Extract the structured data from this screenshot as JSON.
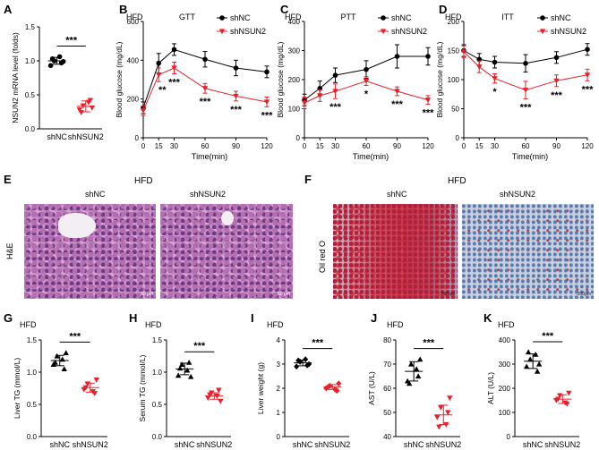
{
  "panel_letters": [
    "A",
    "B",
    "C",
    "D",
    "E",
    "F",
    "G",
    "H",
    "I",
    "J",
    "K"
  ],
  "common": {
    "hfd": "HFD",
    "shNC": "shNC",
    "shNSUN2": "shNSUN2",
    "sig3": "***",
    "sig2": "**",
    "sig1": "*"
  },
  "colors": {
    "shNC": "#000000",
    "shNSUN2": "#e8202a"
  },
  "chart_data": [
    {
      "panel": "A",
      "type": "scatter",
      "ylabel": "NSUN2 mRNA level (folds)",
      "categories": [
        "shNC",
        "shNSUN2"
      ],
      "ylim": [
        0,
        1.5
      ],
      "yticks": [
        "0.0",
        "0.5",
        "1.0",
        "1.5"
      ],
      "series": [
        {
          "name": "shNC",
          "values": [
            0.93,
            1.0,
            1.06,
            0.99,
            1.03,
            0.97
          ],
          "mean": 1.0,
          "sd": 0.05
        },
        {
          "name": "shNSUN2",
          "values": [
            0.28,
            0.34,
            0.39,
            0.31,
            0.24,
            0.42
          ],
          "mean": 0.33,
          "sd": 0.08
        }
      ],
      "annotation": "***"
    },
    {
      "panel": "B",
      "type": "line",
      "title": "GTT",
      "xlabel": "Time(min)",
      "ylabel": "Blood glucose (mg/dL)",
      "x": [
        0,
        15,
        30,
        60,
        90,
        120
      ],
      "xlim": [
        0,
        120
      ],
      "ylim": [
        0,
        600
      ],
      "yticks": [
        "0",
        "200",
        "400",
        "600"
      ],
      "xticks": [
        "0",
        "15",
        "30",
        "60",
        "90",
        "120"
      ],
      "series": [
        {
          "name": "shNC",
          "values": [
            155,
            385,
            455,
            405,
            360,
            340
          ],
          "err": [
            30,
            50,
            30,
            40,
            40,
            30
          ]
        },
        {
          "name": "shNSUN2",
          "values": [
            140,
            325,
            360,
            255,
            215,
            185
          ],
          "err": [
            25,
            35,
            30,
            25,
            25,
            25
          ]
        }
      ],
      "significance": [
        "",
        "**",
        "***",
        "***",
        "***",
        "***"
      ]
    },
    {
      "panel": "C",
      "type": "line",
      "title": "PTT",
      "xlabel": "Time(min)",
      "ylabel": "Blood glucose (mg/dL)",
      "x": [
        0,
        15,
        30,
        60,
        90,
        120
      ],
      "xlim": [
        0,
        120
      ],
      "ylim": [
        0,
        400
      ],
      "yticks": [
        "0",
        "100",
        "200",
        "300",
        "400"
      ],
      "xticks": [
        "0",
        "15",
        "30",
        "60",
        "90",
        "120"
      ],
      "series": [
        {
          "name": "shNC",
          "values": [
            130,
            170,
            215,
            235,
            280,
            280
          ],
          "err": [
            20,
            25,
            25,
            30,
            40,
            30
          ]
        },
        {
          "name": "shNSUN2",
          "values": [
            120,
            145,
            160,
            195,
            160,
            130
          ],
          "err": [
            20,
            20,
            25,
            15,
            15,
            15
          ]
        }
      ],
      "significance": [
        "",
        "",
        "***",
        "*",
        "***",
        "***"
      ]
    },
    {
      "panel": "D",
      "type": "line",
      "title": "ITT",
      "xlabel": "Time(min)",
      "ylabel": "Blood glucose (mg/dL)",
      "x": [
        0,
        15,
        30,
        60,
        90,
        120
      ],
      "xlim": [
        0,
        120
      ],
      "ylim": [
        0,
        200
      ],
      "yticks": [
        "0",
        "50",
        "100",
        "150",
        "200"
      ],
      "xticks": [
        "0",
        "15",
        "30",
        "60",
        "90",
        "120"
      ],
      "series": [
        {
          "name": "shNC",
          "values": [
            150,
            135,
            130,
            128,
            138,
            152
          ],
          "err": [
            10,
            10,
            10,
            15,
            10,
            10
          ]
        },
        {
          "name": "shNSUN2",
          "values": [
            148,
            122,
            102,
            82,
            98,
            108
          ],
          "err": [
            10,
            10,
            8,
            15,
            10,
            10
          ]
        }
      ],
      "significance": [
        "",
        "",
        "*",
        "***",
        "***",
        "***"
      ]
    },
    {
      "panel": "G",
      "type": "scatter",
      "ylabel": "Liver TG (mmol/L)",
      "categories": [
        "shNC",
        "shNSUN2"
      ],
      "ylim": [
        0,
        1.5
      ],
      "yticks": [
        "0.0",
        "0.5",
        "1.0",
        "1.5"
      ],
      "series": [
        {
          "name": "shNC",
          "values": [
            1.12,
            1.25,
            1.2,
            1.3,
            1.15,
            1.05
          ],
          "mean": 1.18,
          "sd": 0.08
        },
        {
          "name": "shNSUN2",
          "values": [
            0.73,
            0.82,
            0.7,
            0.88,
            0.76,
            0.67
          ],
          "mean": 0.76,
          "sd": 0.07
        }
      ],
      "annotation": "***"
    },
    {
      "panel": "H",
      "type": "scatter",
      "ylabel": "Serum TG (mmol/L)",
      "categories": [
        "shNC",
        "shNSUN2"
      ],
      "ylim": [
        0,
        1.5
      ],
      "yticks": [
        "0.0",
        "0.5",
        "1.0",
        "1.5"
      ],
      "series": [
        {
          "name": "shNC",
          "values": [
            0.95,
            1.12,
            1.03,
            0.93,
            1.06,
            1.15
          ],
          "mean": 1.05,
          "sd": 0.09
        },
        {
          "name": "shNSUN2",
          "values": [
            0.6,
            0.68,
            0.63,
            0.55,
            0.65,
            0.72
          ],
          "mean": 0.63,
          "sd": 0.05
        }
      ],
      "annotation": "***"
    },
    {
      "panel": "I",
      "type": "scatter",
      "ylabel": "Liver weight (g)",
      "categories": [
        "shNC",
        "shNSUN2"
      ],
      "ylim": [
        0,
        4
      ],
      "yticks": [
        "0",
        "1",
        "2",
        "3",
        "4"
      ],
      "series": [
        {
          "name": "shNC",
          "values": [
            2.9,
            3.1,
            3.2,
            3.0,
            3.15,
            2.95
          ],
          "mean": 3.05,
          "sd": 0.12
        },
        {
          "name": "shNSUN2",
          "values": [
            2.0,
            2.1,
            1.95,
            2.2,
            2.05,
            1.9
          ],
          "mean": 2.05,
          "sd": 0.1
        }
      ],
      "annotation": "***"
    },
    {
      "panel": "J",
      "type": "scatter",
      "ylabel": "AST (U/L)",
      "categories": [
        "shNC",
        "shNSUN2"
      ],
      "ylim": [
        40,
        80
      ],
      "yticks": [
        "40",
        "50",
        "60",
        "70",
        "80"
      ],
      "series": [
        {
          "name": "shNC",
          "values": [
            63,
            70,
            68,
            72,
            62,
            65
          ],
          "mean": 67,
          "sd": 4
        },
        {
          "name": "shNSUN2",
          "values": [
            48,
            52,
            45,
            56,
            44,
            50
          ],
          "mean": 49,
          "sd": 4
        }
      ],
      "annotation": "***"
    },
    {
      "panel": "K",
      "type": "scatter",
      "ylabel": "ALT (U/L)",
      "categories": [
        "shNC",
        "shNSUN2"
      ],
      "ylim": [
        0,
        400
      ],
      "yticks": [
        "0",
        "100",
        "200",
        "300",
        "400"
      ],
      "series": [
        {
          "name": "shNC",
          "values": [
            290,
            320,
            340,
            300,
            350,
            270
          ],
          "mean": 312,
          "sd": 30
        },
        {
          "name": "shNSUN2",
          "values": [
            150,
            170,
            140,
            180,
            155,
            135
          ],
          "mean": 155,
          "sd": 18
        }
      ],
      "annotation": "***"
    }
  ],
  "histology": {
    "E": {
      "title": "HFD",
      "side_label": "H&E",
      "cols": [
        "shNC",
        "shNSUN2"
      ],
      "scale": "50 μm"
    },
    "F": {
      "title": "HFD",
      "side_label": "Oil red O",
      "cols": [
        "shNC",
        "shNSUN2"
      ],
      "scale": "200μm"
    }
  }
}
